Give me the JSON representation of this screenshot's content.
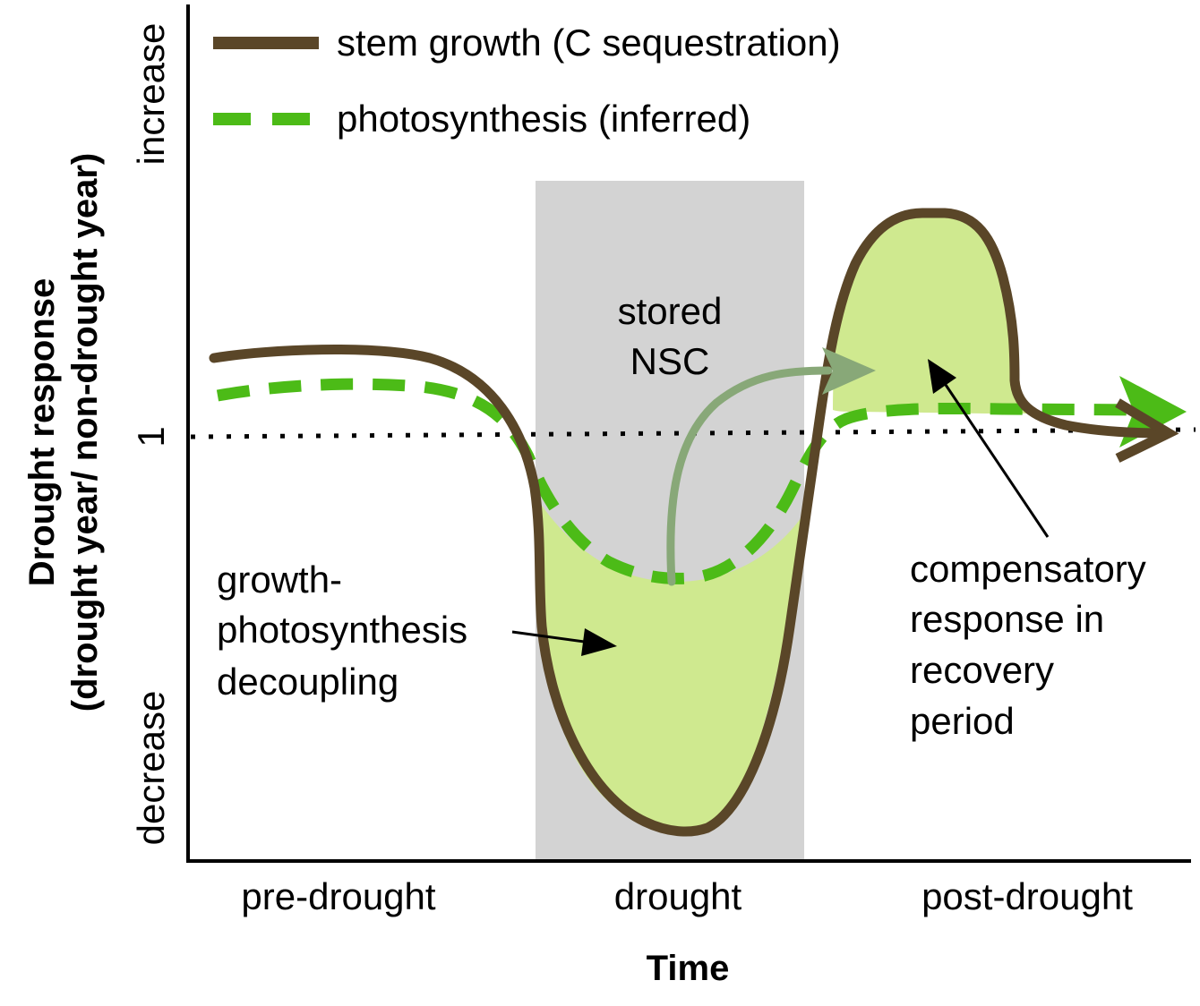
{
  "axes": {
    "y_title_line1": "Drought response",
    "y_title_line2": "(drought year/ non-drought year)",
    "x_title": "Time",
    "y_top_label": "increase",
    "y_reference_label": "1",
    "y_bottom_label": "decrease",
    "x_phases": [
      "pre-drought",
      "drought",
      "post-drought"
    ]
  },
  "legend": {
    "stem_growth": "stem growth (C sequestration)",
    "photosynthesis": "photosynthesis (inferred)"
  },
  "annotations": {
    "stored_line1": "stored",
    "stored_line2": "NSC",
    "decoupling_line1": "growth-",
    "decoupling_line2": "photosynthesis",
    "decoupling_line3": "decoupling",
    "compensatory_line1": "compensatory",
    "compensatory_line2": "response in",
    "compensatory_line3": "recovery",
    "compensatory_line4": "period"
  },
  "colors": {
    "stem_growth": "#5a4628",
    "photosynthesis": "#4cbb17",
    "fill": "#cfe98f",
    "drought_band": "#d3d3d3",
    "nsc_arrow": "#88a878"
  }
}
